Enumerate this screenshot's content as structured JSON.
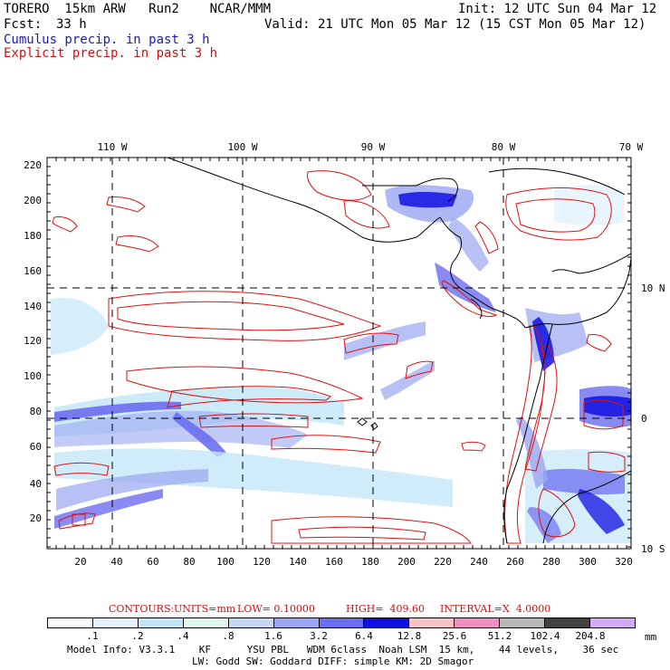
{
  "header": {
    "model_line": "TORERO  15km ARW   Run2    NCAR/MMM",
    "init": "Init: 12 UTC Sun 04 Mar 12",
    "fcst_label": "Fcst:",
    "fcst_value": "33 h",
    "valid": "Valid: 21 UTC Mon 05 Mar 12 (15 CST Mon 05 Mar 12)",
    "field_cumulus": "Cumulus precip. in past 3 h",
    "field_explicit": "Explicit precip. in past 3 h"
  },
  "map": {
    "x_ticks": [
      "20",
      "40",
      "60",
      "80",
      "100",
      "120",
      "140",
      "160",
      "180",
      "200",
      "220",
      "240",
      "260",
      "280",
      "300",
      "320"
    ],
    "y_ticks": [
      "20",
      "40",
      "60",
      "80",
      "100",
      "120",
      "140",
      "160",
      "180",
      "200",
      "220"
    ],
    "lon_labels": [
      "110 W",
      "100 W",
      "90 W",
      "80 W",
      "70 W"
    ],
    "lat_labels": [
      "10 N",
      "0",
      "10 S"
    ],
    "colors": {
      "land_outline": "#000000",
      "explicit_contour": "#e01010",
      "grid": "#000000"
    }
  },
  "contours": {
    "label": "CONTOURS:",
    "units": "UNITS=mm",
    "low": "LOW= 0.10000",
    "high": "HIGH=  409.60",
    "interval": "INTERVAL=X  4.0000"
  },
  "colorbar": {
    "unit": "mm",
    "labels": [
      ".1",
      ".2",
      ".4",
      ".8",
      "1.6",
      "3.2",
      "6.4",
      "12.8",
      "25.6",
      "51.2",
      "102.4",
      "204.8"
    ],
    "colors": [
      "#ffffff",
      "#e6f4ff",
      "#c4e6f8",
      "#dff8f2",
      "#c6d8f6",
      "#9aa6f2",
      "#6b6ef0",
      "#1010e0",
      "#f6c4c4",
      "#f090c0",
      "#b8b8b8",
      "#404040",
      "#d4aaf8"
    ]
  },
  "footer": {
    "line1": "Model Info: V3.3.1    KF      YSU PBL   WDM 6class  Noah LSM  15 km,    44 levels,    36 sec",
    "line2": "LW: Godd SW: Goddard DIFF: simple KM: 2D Smagor"
  }
}
